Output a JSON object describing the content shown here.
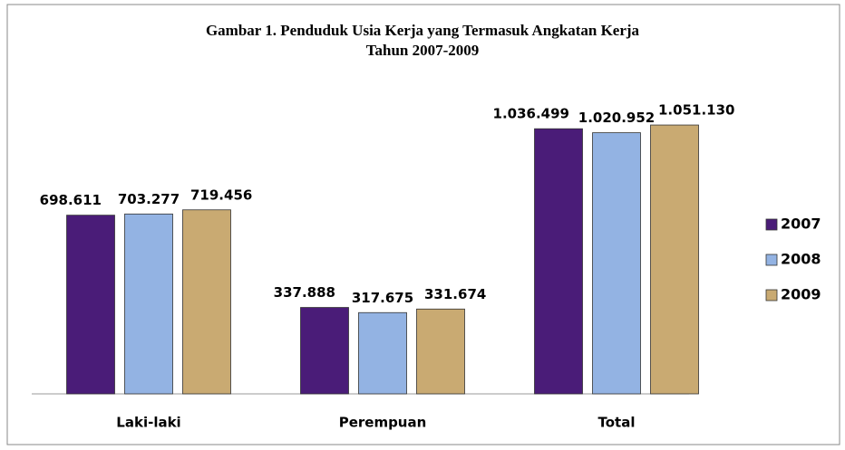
{
  "chart_data": {
    "type": "bar",
    "title": "Gambar 1. Penduduk Usia Kerja yang Termasuk Angkatan Kerja",
    "subtitle": "Tahun 2007-2009",
    "categories": [
      "Laki-laki",
      "Perempuan",
      "Total"
    ],
    "series": [
      {
        "name": "2007",
        "color": "#4a1c78",
        "values": [
          698611,
          337888,
          1036499
        ],
        "value_labels": [
          "698.611",
          "337.888",
          "1.036.499"
        ]
      },
      {
        "name": "2008",
        "color": "#93b3e3",
        "values": [
          703277,
          317675,
          1020952
        ],
        "value_labels": [
          "703.277",
          "317.675",
          "1.020.952"
        ]
      },
      {
        "name": "2009",
        "color": "#c9aa72",
        "values": [
          719456,
          331674,
          1051130
        ],
        "value_labels": [
          "719.456",
          "331.674",
          "1.051.130"
        ]
      }
    ],
    "ylim": [
      0,
      1200000
    ],
    "legend": "right"
  }
}
